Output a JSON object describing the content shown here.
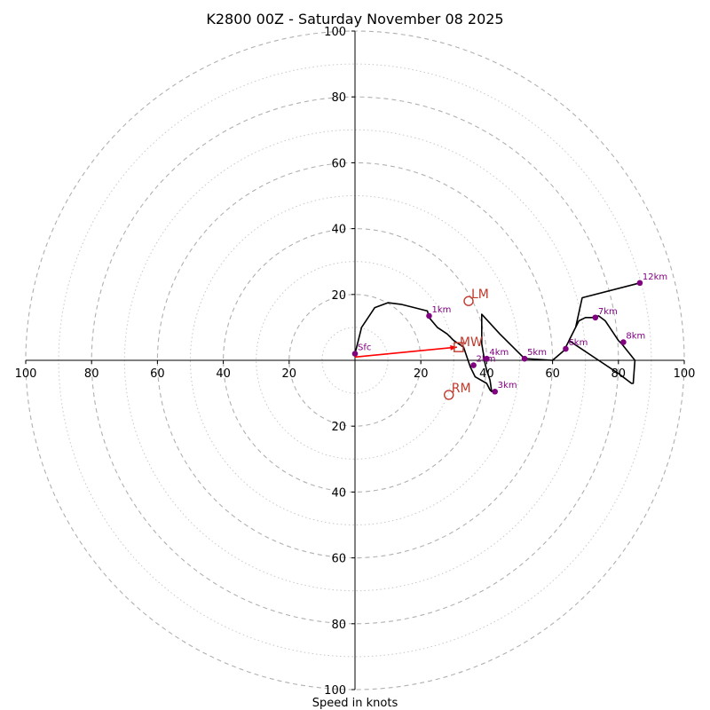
{
  "chart_data": {
    "type": "hodograph",
    "title": "K2800 00Z - Saturday November 08 2025",
    "xlabel": "Speed in knots",
    "range": [
      -100,
      100
    ],
    "ring_major": [
      20,
      40,
      60,
      80,
      100
    ],
    "ring_minor": [
      10,
      30,
      50,
      70,
      90
    ],
    "tick_labels_x": [
      "100",
      "80",
      "60",
      "40",
      "20",
      "20",
      "40",
      "60",
      "80",
      "100"
    ],
    "tick_values_x": [
      -100,
      -80,
      -60,
      -40,
      -20,
      20,
      40,
      60,
      80,
      100
    ],
    "tick_labels_y": [
      "100",
      "80",
      "60",
      "40",
      "20",
      "20",
      "40",
      "60",
      "80",
      "100"
    ],
    "tick_values_y": [
      100,
      80,
      60,
      40,
      20,
      -20,
      -40,
      -60,
      -80,
      -100
    ],
    "colors": {
      "trace": "#000000",
      "heights": "#800080",
      "storm_motion": "#c0392b",
      "mean_wind_vector": "#ff0000",
      "grid": "#b0b0b0"
    },
    "trace": [
      [
        0,
        2
      ],
      [
        2,
        10
      ],
      [
        6,
        16
      ],
      [
        10,
        17.5
      ],
      [
        14,
        17
      ],
      [
        18,
        16
      ],
      [
        22,
        15
      ],
      [
        22.5,
        13
      ],
      [
        25,
        10
      ],
      [
        28,
        8
      ],
      [
        30,
        6
      ],
      [
        33,
        4
      ],
      [
        34,
        1
      ],
      [
        35,
        -2
      ],
      [
        36.5,
        -5
      ],
      [
        40,
        -7
      ],
      [
        41,
        -9
      ],
      [
        41.5,
        -9.5
      ],
      [
        41,
        -6
      ],
      [
        40,
        -3
      ],
      [
        39.5,
        -1
      ],
      [
        39,
        2
      ],
      [
        38.5,
        5
      ],
      [
        38.5,
        14
      ],
      [
        44,
        8
      ],
      [
        51.5,
        0.5
      ],
      [
        60,
        0
      ],
      [
        63.5,
        3
      ],
      [
        66,
        8
      ],
      [
        68,
        12
      ],
      [
        70,
        13
      ],
      [
        72,
        13
      ],
      [
        74,
        13.5
      ],
      [
        76,
        12
      ],
      [
        78,
        9
      ],
      [
        80,
        6
      ],
      [
        81,
        5
      ],
      [
        85,
        0
      ],
      [
        84.5,
        -7
      ],
      [
        84,
        -7
      ],
      [
        80,
        -4
      ],
      [
        74,
        0
      ],
      [
        68,
        4
      ],
      [
        65,
        6
      ],
      [
        67,
        10
      ],
      [
        69,
        19
      ],
      [
        86.5,
        23.5
      ]
    ],
    "height_points": [
      {
        "label": "Sfc",
        "u": 0,
        "v": 2
      },
      {
        "label": "1km",
        "u": 22.5,
        "v": 13.5
      },
      {
        "label": "2km",
        "u": 36,
        "v": -1.5
      },
      {
        "label": "3km",
        "u": 42.5,
        "v": -9.5
      },
      {
        "label": "4km",
        "u": 40,
        "v": 0.5
      },
      {
        "label": "5km",
        "u": 51.5,
        "v": 0.5
      },
      {
        "label": "6km",
        "u": 64,
        "v": 3.5
      },
      {
        "label": "7km",
        "u": 73,
        "v": 13
      },
      {
        "label": "8km",
        "u": 81.5,
        "v": 5.5
      },
      {
        "label": "12km",
        "u": 86.5,
        "v": 23.5
      }
    ],
    "storm_motion": {
      "LM": {
        "label": "LM",
        "u": 34.5,
        "v": 18
      },
      "RM": {
        "label": "RM",
        "u": 28.5,
        "v": -10.5
      },
      "MW": {
        "label": "MW",
        "u": 31.5,
        "v": 4
      }
    }
  }
}
